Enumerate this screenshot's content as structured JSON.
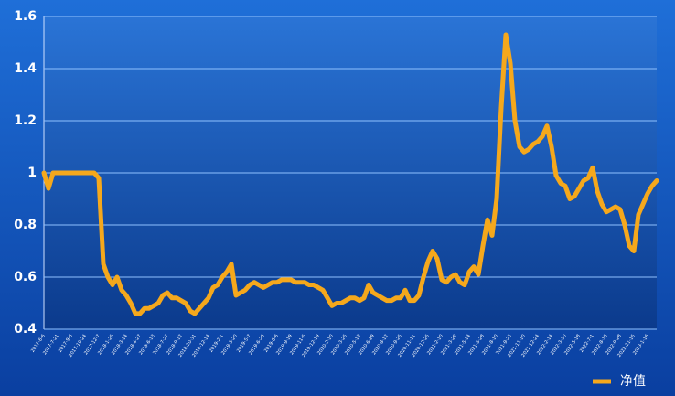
{
  "chart_data": {
    "type": "line",
    "categories": [
      "2017-6-6",
      null,
      null,
      "2017-7-21",
      null,
      null,
      "2017-9-6",
      null,
      null,
      "2017-10-24",
      null,
      null,
      "2017-12-7",
      null,
      null,
      "2018-1-25",
      null,
      null,
      "2018-3-14",
      null,
      null,
      "2018-4-27",
      null,
      null,
      "2018-6-13",
      null,
      null,
      "2018-7-27",
      null,
      null,
      "2018-9-12",
      null,
      null,
      "2018-10-31",
      null,
      null,
      "2018-12-14",
      null,
      null,
      "2019-2-1",
      null,
      null,
      "2019-3-20",
      null,
      null,
      "2019-5-7",
      null,
      null,
      "2019-6-20",
      null,
      null,
      "2019-8-6",
      null,
      null,
      "2019-9-19",
      null,
      null,
      "2019-11-5",
      null,
      null,
      "2019-12-19",
      null,
      null,
      "2020-2-10",
      null,
      null,
      "2020-3-25",
      null,
      null,
      "2020-5-13",
      null,
      null,
      "2020-6-29",
      null,
      null,
      "2020-8-12",
      null,
      null,
      "2020-9-25",
      null,
      null,
      "2020-11-11",
      null,
      null,
      "2020-12-25",
      null,
      null,
      "2021-2-10",
      null,
      null,
      "2021-3-29",
      null,
      null,
      "2021-5-14",
      null,
      null,
      "2021-6-28",
      null,
      null,
      "2021-8-10",
      null,
      null,
      "2021-9-23",
      null,
      null,
      "2021-11-10",
      null,
      null,
      "2021-12-24",
      null,
      null,
      "2022-2-14",
      null,
      null,
      "2022-3-30",
      null,
      null,
      "2022-5-18",
      null,
      null,
      "2022-7-1",
      null,
      null,
      "2022-8-15",
      null,
      null,
      "2022-9-28",
      null,
      null,
      "2022-11-15",
      null,
      null,
      "2023-1-16",
      null,
      null
    ],
    "series": [
      {
        "name": "净值",
        "color": "#f5a81c",
        "values": [
          1.0,
          0.94,
          1.0,
          1.0,
          1.0,
          1.0,
          1.0,
          1.0,
          1.0,
          1.0,
          1.0,
          1.0,
          0.98,
          0.65,
          0.6,
          0.57,
          0.6,
          0.55,
          0.53,
          0.5,
          0.46,
          0.46,
          0.48,
          0.48,
          0.49,
          0.5,
          0.53,
          0.54,
          0.52,
          0.52,
          0.51,
          0.5,
          0.47,
          0.46,
          0.48,
          0.5,
          0.52,
          0.56,
          0.57,
          0.6,
          0.62,
          0.65,
          0.53,
          0.54,
          0.55,
          0.57,
          0.58,
          0.57,
          0.56,
          0.57,
          0.58,
          0.58,
          0.59,
          0.59,
          0.59,
          0.58,
          0.58,
          0.58,
          0.57,
          0.57,
          0.56,
          0.55,
          0.52,
          0.49,
          0.5,
          0.5,
          0.51,
          0.52,
          0.52,
          0.51,
          0.52,
          0.57,
          0.54,
          0.53,
          0.52,
          0.51,
          0.51,
          0.52,
          0.52,
          0.55,
          0.51,
          0.51,
          0.53,
          0.6,
          0.66,
          0.7,
          0.67,
          0.59,
          0.58,
          0.6,
          0.61,
          0.58,
          0.57,
          0.62,
          0.64,
          0.61,
          0.72,
          0.82,
          0.76,
          0.9,
          1.25,
          1.53,
          1.42,
          1.2,
          1.1,
          1.08,
          1.09,
          1.11,
          1.12,
          1.14,
          1.18,
          1.1,
          0.99,
          0.96,
          0.95,
          0.9,
          0.91,
          0.94,
          0.97,
          0.98,
          1.02,
          0.93,
          0.88,
          0.85,
          0.86,
          0.87,
          0.86,
          0.8,
          0.72,
          0.7,
          0.84,
          0.88,
          0.92,
          0.95,
          0.97
        ]
      }
    ],
    "ylim": [
      0.4,
      1.6
    ],
    "yticks": [
      0.4,
      0.6,
      0.8,
      1,
      1.2,
      1.4,
      1.6
    ],
    "grid": true,
    "legend": "lower right"
  }
}
